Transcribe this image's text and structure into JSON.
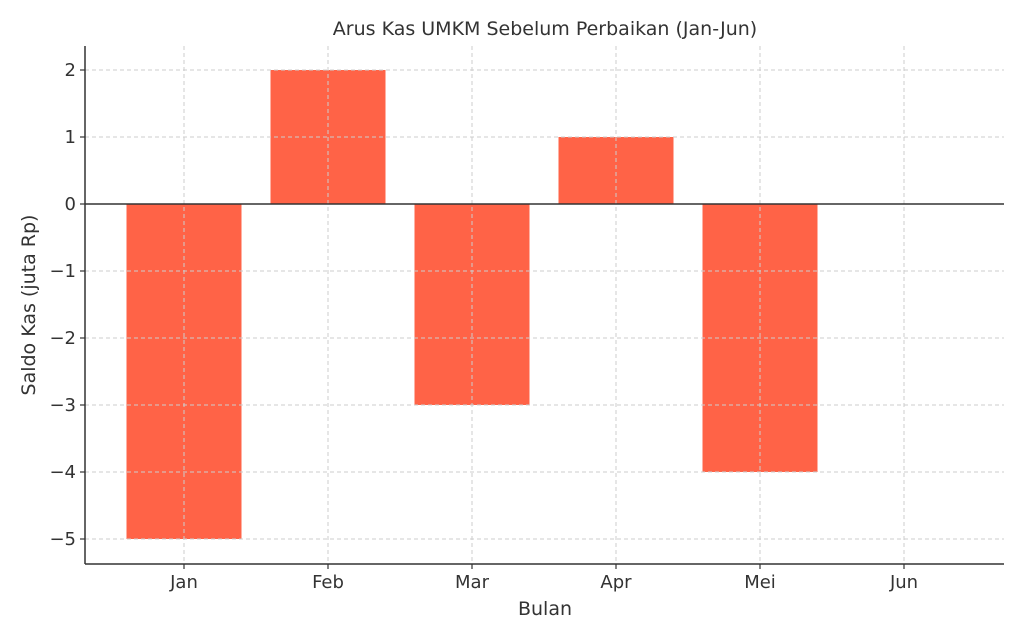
{
  "chart_data": {
    "type": "bar",
    "title": "Arus Kas UMKM Sebelum Perbaikan (Jan-Jun)",
    "xlabel": "Bulan",
    "ylabel": "Saldo Kas (juta Rp)",
    "categories": [
      "Jan",
      "Feb",
      "Mar",
      "Apr",
      "Mei",
      "Jun"
    ],
    "values": [
      -5,
      2,
      -3,
      1,
      -4,
      0
    ],
    "ylim": [
      -5.35,
      2.35
    ],
    "yticks": [
      2,
      1,
      0,
      -1,
      -2,
      -3,
      -4,
      -5
    ],
    "ytick_labels": [
      "2",
      "1",
      "0",
      "−1",
      "−2",
      "−3",
      "−4",
      "−5"
    ],
    "grid": true,
    "zero_line": true,
    "legend": null,
    "bar_color": "#FF6347"
  },
  "colors": {
    "bar": "#FF6347",
    "grid": "#cccccc",
    "axis": "#333333",
    "text": "#333333"
  }
}
